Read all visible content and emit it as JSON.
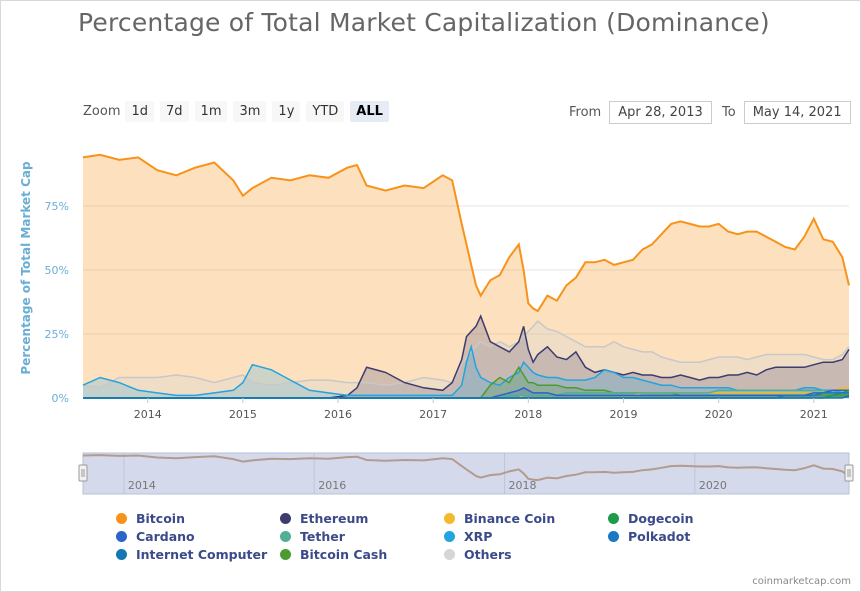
{
  "title": "Percentage of Total Market Capitalization (Dominance)",
  "zoom": {
    "label": "Zoom",
    "buttons": [
      "1d",
      "7d",
      "1m",
      "3m",
      "1y",
      "YTD",
      "ALL"
    ],
    "active": "ALL"
  },
  "range": {
    "from_label": "From",
    "from_value": "Apr 28, 2013",
    "to_label": "To",
    "to_value": "May 14, 2021"
  },
  "credit": "coinmarketcap.com",
  "colors": {
    "bitcoin": "#f7931a",
    "ethereum": "#3c3c6e",
    "binance_coin": "#f3ba2f",
    "dogecoin": "#1c9b48",
    "cardano": "#2a65c9",
    "tether": "#50af95",
    "xrp": "#23a3e0",
    "polkadot": "#1a78c4",
    "internet_computer": "#1478b4",
    "bitcoin_cash": "#4c9b31",
    "others": "#d6d6d6"
  },
  "chart_data": {
    "type": "area",
    "title": "Percentage of Total Market Capitalization (Dominance)",
    "xlabel": "",
    "ylabel": "Percentage of Total Market Cap",
    "y_ticks": [
      "0%",
      "25%",
      "50%",
      "75%"
    ],
    "x_ticks": [
      "2014",
      "2015",
      "2016",
      "2017",
      "2018",
      "2019",
      "2020",
      "2021"
    ],
    "xlim": [
      2013.32,
      2021.37
    ],
    "ylim": [
      0,
      100
    ],
    "grid": true,
    "legend_position": "bottom",
    "navigator_ticks": [
      "2014",
      "2016",
      "2018",
      "2020"
    ],
    "x": [
      2013.32,
      2013.5,
      2013.7,
      2013.9,
      2014.1,
      2014.3,
      2014.5,
      2014.7,
      2014.9,
      2015.0,
      2015.1,
      2015.3,
      2015.5,
      2015.7,
      2015.9,
      2016.1,
      2016.2,
      2016.3,
      2016.5,
      2016.7,
      2016.9,
      2017.1,
      2017.2,
      2017.3,
      2017.35,
      2017.4,
      2017.45,
      2017.5,
      2017.6,
      2017.7,
      2017.8,
      2017.9,
      2017.95,
      2018.0,
      2018.05,
      2018.1,
      2018.2,
      2018.3,
      2018.4,
      2018.5,
      2018.6,
      2018.7,
      2018.8,
      2018.9,
      2019.0,
      2019.1,
      2019.2,
      2019.3,
      2019.4,
      2019.5,
      2019.6,
      2019.7,
      2019.8,
      2019.9,
      2020.0,
      2020.1,
      2020.2,
      2020.3,
      2020.4,
      2020.5,
      2020.6,
      2020.7,
      2020.8,
      2020.9,
      2021.0,
      2021.1,
      2021.2,
      2021.3,
      2021.37
    ],
    "series": [
      {
        "name": "Bitcoin",
        "values": [
          94,
          95,
          93,
          94,
          89,
          87,
          90,
          92,
          85,
          79,
          82,
          86,
          85,
          87,
          86,
          90,
          91,
          83,
          81,
          83,
          82,
          87,
          85,
          68,
          60,
          52,
          44,
          40,
          46,
          48,
          55,
          60,
          50,
          37,
          35,
          34,
          40,
          38,
          44,
          47,
          53,
          53,
          54,
          52,
          53,
          54,
          58,
          60,
          64,
          68,
          69,
          68,
          67,
          67,
          68,
          65,
          64,
          65,
          65,
          63,
          61,
          59,
          58,
          63,
          70,
          62,
          61,
          55,
          44
        ]
      },
      {
        "name": "Ethereum",
        "values": [
          0,
          0,
          0,
          0,
          0,
          0,
          0,
          0,
          0,
          0,
          0,
          0,
          0,
          0,
          0,
          1,
          4,
          12,
          10,
          6,
          4,
          3,
          6,
          15,
          24,
          26,
          28,
          32,
          22,
          20,
          18,
          22,
          28,
          19,
          14,
          17,
          20,
          16,
          15,
          18,
          12,
          10,
          11,
          10,
          9,
          10,
          9,
          9,
          8,
          8,
          9,
          8,
          7,
          8,
          8,
          9,
          9,
          10,
          9,
          11,
          12,
          12,
          12,
          12,
          13,
          14,
          14,
          15,
          19
        ]
      },
      {
        "name": "Binance Coin",
        "values": [
          0,
          0,
          0,
          0,
          0,
          0,
          0,
          0,
          0,
          0,
          0,
          0,
          0,
          0,
          0,
          0,
          0,
          0,
          0,
          0,
          0,
          0,
          0,
          0,
          0,
          0,
          0,
          0,
          0,
          0,
          0,
          0,
          1,
          1,
          1,
          1,
          1,
          1,
          1,
          1,
          1,
          1,
          1,
          1,
          1,
          1,
          2,
          2,
          2,
          2,
          2,
          2,
          2,
          2,
          2,
          2,
          2,
          2,
          2,
          2,
          2,
          2,
          2,
          2,
          2,
          2,
          3,
          4,
          4
        ]
      },
      {
        "name": "Dogecoin",
        "values": [
          0,
          0,
          0,
          0,
          0,
          0,
          0,
          0,
          0,
          0,
          0,
          0,
          0,
          0,
          0,
          0,
          0,
          0,
          0,
          0,
          0,
          0,
          0,
          0,
          0,
          0,
          0,
          0,
          0,
          0,
          0,
          0,
          0,
          0,
          0,
          0,
          0,
          0,
          0,
          0,
          0,
          0,
          0,
          0,
          0,
          0,
          0,
          0,
          0,
          0,
          0,
          0,
          0,
          0,
          0,
          0,
          0,
          0,
          0,
          0,
          0,
          0,
          0,
          0,
          0,
          0,
          1,
          2,
          3
        ]
      },
      {
        "name": "Cardano",
        "values": [
          0,
          0,
          0,
          0,
          0,
          0,
          0,
          0,
          0,
          0,
          0,
          0,
          0,
          0,
          0,
          0,
          0,
          0,
          0,
          0,
          0,
          0,
          0,
          0,
          0,
          0,
          0,
          0,
          0,
          1,
          2,
          3,
          4,
          3,
          2,
          2,
          2,
          1,
          1,
          1,
          1,
          1,
          1,
          1,
          1,
          1,
          1,
          1,
          1,
          1,
          1,
          1,
          1,
          1,
          1,
          1,
          1,
          1,
          1,
          1,
          1,
          1,
          1,
          1,
          2,
          2,
          3,
          3,
          3
        ]
      },
      {
        "name": "Tether",
        "values": [
          0,
          0,
          0,
          0,
          0,
          0,
          0,
          0,
          0,
          0,
          0,
          0,
          0,
          0,
          0,
          0,
          0,
          0,
          0,
          0,
          0,
          0,
          0,
          0,
          0,
          0,
          0,
          0,
          0,
          0,
          1,
          1,
          1,
          1,
          1,
          1,
          1,
          1,
          2,
          2,
          2,
          2,
          2,
          2,
          2,
          2,
          2,
          2,
          2,
          2,
          2,
          2,
          2,
          2,
          3,
          3,
          3,
          3,
          3,
          3,
          3,
          3,
          3,
          3,
          3,
          3,
          2,
          2,
          2
        ]
      },
      {
        "name": "XRP",
        "values": [
          5,
          8,
          6,
          3,
          2,
          1,
          1,
          2,
          3,
          6,
          13,
          11,
          7,
          3,
          2,
          1,
          1,
          1,
          1,
          1,
          1,
          1,
          1,
          5,
          14,
          20,
          12,
          8,
          6,
          5,
          8,
          10,
          14,
          12,
          10,
          9,
          8,
          8,
          7,
          7,
          7,
          8,
          11,
          10,
          8,
          8,
          7,
          6,
          5,
          5,
          4,
          4,
          4,
          4,
          4,
          4,
          3,
          3,
          3,
          3,
          3,
          3,
          3,
          4,
          4,
          3,
          3,
          2,
          2
        ]
      },
      {
        "name": "Polkadot",
        "values": [
          0,
          0,
          0,
          0,
          0,
          0,
          0,
          0,
          0,
          0,
          0,
          0,
          0,
          0,
          0,
          0,
          0,
          0,
          0,
          0,
          0,
          0,
          0,
          0,
          0,
          0,
          0,
          0,
          0,
          0,
          0,
          0,
          0,
          0,
          0,
          0,
          0,
          0,
          0,
          0,
          0,
          0,
          0,
          0,
          0,
          0,
          0,
          0,
          0,
          0,
          0,
          0,
          0,
          0,
          0,
          0,
          0,
          0,
          0,
          0,
          0,
          1,
          1,
          1,
          1,
          2,
          2,
          2,
          2
        ]
      },
      {
        "name": "Internet Computer",
        "values": [
          0,
          0,
          0,
          0,
          0,
          0,
          0,
          0,
          0,
          0,
          0,
          0,
          0,
          0,
          0,
          0,
          0,
          0,
          0,
          0,
          0,
          0,
          0,
          0,
          0,
          0,
          0,
          0,
          0,
          0,
          0,
          0,
          0,
          0,
          0,
          0,
          0,
          0,
          0,
          0,
          0,
          0,
          0,
          0,
          0,
          0,
          0,
          0,
          0,
          0,
          0,
          0,
          0,
          0,
          0,
          0,
          0,
          0,
          0,
          0,
          0,
          0,
          0,
          0,
          0,
          0,
          0,
          0,
          1
        ]
      },
      {
        "name": "Bitcoin Cash",
        "values": [
          0,
          0,
          0,
          0,
          0,
          0,
          0,
          0,
          0,
          0,
          0,
          0,
          0,
          0,
          0,
          0,
          0,
          0,
          0,
          0,
          0,
          0,
          0,
          0,
          0,
          0,
          0,
          0,
          5,
          8,
          6,
          12,
          9,
          6,
          6,
          5,
          5,
          5,
          4,
          4,
          3,
          3,
          3,
          2,
          2,
          2,
          2,
          2,
          2,
          2,
          1,
          1,
          1,
          1,
          1,
          1,
          1,
          1,
          1,
          1,
          1,
          1,
          1,
          1,
          1,
          1,
          1,
          1,
          1
        ]
      },
      {
        "name": "Others",
        "values": [
          5,
          4,
          8,
          8,
          8,
          9,
          8,
          6,
          8,
          9,
          6,
          5,
          6,
          7,
          7,
          6,
          6,
          6,
          5,
          6,
          8,
          7,
          6,
          13,
          16,
          18,
          20,
          22,
          20,
          22,
          20,
          22,
          24,
          26,
          28,
          30,
          27,
          26,
          24,
          22,
          20,
          20,
          20,
          22,
          20,
          19,
          18,
          18,
          16,
          15,
          14,
          14,
          14,
          15,
          16,
          16,
          16,
          15,
          16,
          17,
          17,
          17,
          17,
          17,
          16,
          15,
          15,
          17,
          20
        ]
      }
    ]
  }
}
